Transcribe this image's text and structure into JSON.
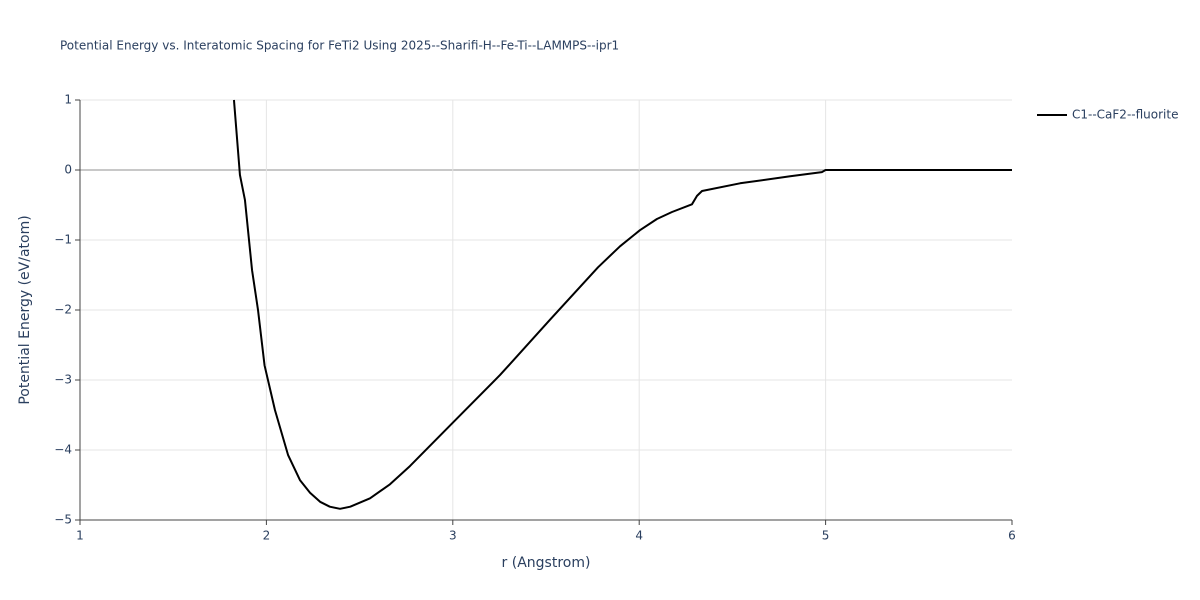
{
  "chart_data": {
    "type": "line",
    "title": "Potential Energy vs. Interatomic Spacing for FeTi2 Using 2025--Sharifi-H--Fe-Ti--LAMMPS--ipr1",
    "x_label": "r (Angstrom)",
    "y_label": "Potential Energy (eV/atom)",
    "x": [
      1.826,
      1.858,
      1.885,
      1.923,
      1.955,
      1.99,
      2.046,
      2.116,
      2.18,
      2.234,
      2.288,
      2.34,
      2.395,
      2.45,
      2.556,
      2.663,
      2.77,
      3.0,
      3.253,
      3.521,
      3.779,
      3.897,
      4.004,
      4.095,
      4.176,
      4.283,
      4.31,
      4.337,
      4.541,
      4.81,
      4.98,
      5.0,
      6.0
    ],
    "series": [
      {
        "name": "C1--CaF2--fluorite",
        "color": "#000000",
        "values": [
          1.0,
          -0.07,
          -0.43,
          -1.43,
          -2.0,
          -2.79,
          -3.43,
          -4.07,
          -4.43,
          -4.61,
          -4.74,
          -4.81,
          -4.84,
          -4.81,
          -4.69,
          -4.49,
          -4.23,
          -3.61,
          -2.93,
          -2.14,
          -1.39,
          -1.09,
          -0.86,
          -0.7,
          -0.6,
          -0.49,
          -0.37,
          -0.3,
          -0.19,
          -0.09,
          -0.03,
          0,
          0
        ]
      }
    ],
    "xlim": [
      1,
      6
    ],
    "xticks": [
      1,
      2,
      3,
      4,
      5,
      6
    ],
    "ylim": [
      -5,
      1
    ],
    "yticks": [
      {
        "value": -5,
        "label": "−5"
      },
      {
        "value": -4,
        "label": "−4"
      },
      {
        "value": -3,
        "label": "−3"
      },
      {
        "value": -2,
        "label": "−2"
      },
      {
        "value": -1,
        "label": "−1"
      },
      0,
      1
    ],
    "grid": true,
    "legend": "right"
  }
}
